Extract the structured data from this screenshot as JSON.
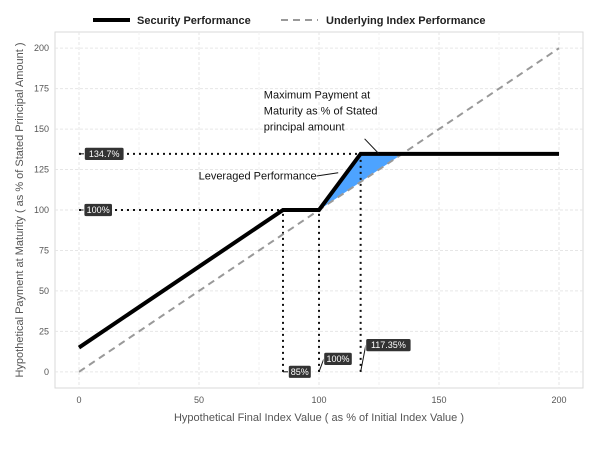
{
  "chart_data": {
    "type": "line",
    "title": "",
    "xlabel": "Hypothetical Final Index Value ( as % of Initial Index Value )",
    "ylabel": "Hypothetical Payment at Maturity ( as % of Stated Principal Amount )",
    "xlim": [
      -10,
      210
    ],
    "ylim": [
      -10,
      210
    ],
    "x_ticks": [
      0,
      50,
      100,
      150,
      200
    ],
    "y_ticks": [
      0,
      25,
      50,
      75,
      100,
      125,
      150,
      175,
      200
    ],
    "grid": true,
    "legend_position": "top",
    "series": [
      {
        "name": "Security Performance",
        "style": "solid",
        "color": "#000000",
        "points": [
          [
            0,
            15
          ],
          [
            85,
            100
          ],
          [
            100,
            100
          ],
          [
            117.35,
            134.7
          ],
          [
            200,
            134.7
          ]
        ]
      },
      {
        "name": "Underlying Index Performance",
        "style": "dashed",
        "color": "#999999",
        "points": [
          [
            0,
            0
          ],
          [
            200,
            200
          ]
        ]
      }
    ],
    "shaded_region": {
      "name": "Leveraged Performance Area",
      "color": "#4da3ff",
      "points": [
        [
          100,
          100
        ],
        [
          117.35,
          134.7
        ],
        [
          134.7,
          134.7
        ]
      ]
    },
    "reference_lines": [
      {
        "name": "cap-level",
        "type": "horizontal",
        "y": 134.7,
        "x_from": 0,
        "x_to": 117.35
      },
      {
        "name": "par-level",
        "type": "horizontal",
        "y": 100,
        "x_from": 0,
        "x_to": 85
      },
      {
        "name": "x-85",
        "type": "vertical",
        "x": 85,
        "y_from": 0,
        "y_to": 100
      },
      {
        "name": "x-100",
        "type": "vertical",
        "x": 100,
        "y_from": 0,
        "y_to": 100
      },
      {
        "name": "x-117",
        "type": "vertical",
        "x": 117.35,
        "y_from": 0,
        "y_to": 134.7
      }
    ],
    "badges": [
      {
        "name": "badge-134-7",
        "label": "134.7%",
        "anchor": [
          0,
          134.7
        ],
        "at": [
          10.5,
          134.7
        ],
        "dir": "center"
      },
      {
        "name": "badge-100-y",
        "label": "100%",
        "anchor": [
          0,
          100
        ],
        "at": [
          8,
          100
        ],
        "dir": "center"
      },
      {
        "name": "badge-85",
        "label": "85%",
        "anchor": [
          85,
          0
        ],
        "at": [
          92,
          0
        ],
        "dir": "center"
      },
      {
        "name": "badge-100-x",
        "label": "100%",
        "anchor": [
          100,
          0
        ],
        "at": [
          102,
          8
        ],
        "dir": "left"
      },
      {
        "name": "badge-117-35",
        "label": "117.35%",
        "anchor": [
          117.35,
          0
        ],
        "at": [
          119.5,
          16.5
        ],
        "dir": "left"
      }
    ],
    "annotations": [
      {
        "name": "annotation-max-payment",
        "lines": [
          "Maximum Payment at",
          "Maturity as % of Stated",
          "principal amount"
        ],
        "text_at": [
          77,
          149
        ],
        "line_from": [
          119,
          144
        ],
        "line_to": [
          125,
          134.7
        ]
      },
      {
        "name": "annotation-leveraged",
        "lines": [
          "Leveraged Performance"
        ],
        "text_at": [
          99,
          119
        ],
        "line_from": [
          99,
          121
        ],
        "line_to": [
          108,
          123
        ]
      }
    ]
  }
}
